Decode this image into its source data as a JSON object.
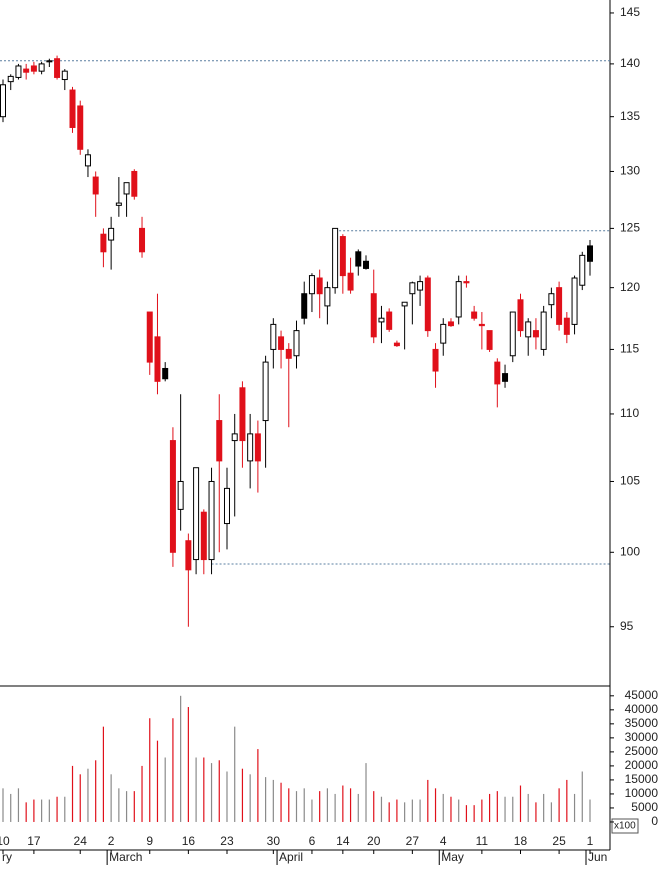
{
  "chart_data": {
    "type": "candlestick",
    "categories": [
      "10",
      null,
      null,
      null,
      "17",
      null,
      null,
      null,
      null,
      null,
      "24",
      null,
      null,
      null,
      "2",
      null,
      null,
      null,
      null,
      "9",
      null,
      null,
      null,
      null,
      "16",
      null,
      null,
      null,
      null,
      "23",
      null,
      null,
      null,
      null,
      null,
      "30",
      null,
      null,
      null,
      null,
      "6",
      null,
      null,
      null,
      "14",
      null,
      null,
      null,
      "20",
      null,
      null,
      null,
      null,
      "27",
      null,
      null,
      null,
      "4",
      null,
      null,
      null,
      null,
      "11",
      null,
      null,
      null,
      null,
      "18",
      null,
      null,
      null,
      null,
      "25",
      null,
      null,
      null,
      "1"
    ],
    "month_labels": [
      {
        "label": "ry",
        "at": 0
      },
      {
        "label": "March",
        "at": 14
      },
      {
        "label": "April",
        "at": 36
      },
      {
        "label": "May",
        "at": 57
      },
      {
        "label": "Jun",
        "at": 76
      }
    ],
    "open": [
      135,
      138.3,
      138.7,
      139.5,
      139.8,
      139.3,
      140.2,
      140.5,
      138.5,
      137.5,
      136,
      130.5,
      129.5,
      124.5,
      124,
      127,
      128,
      130,
      125,
      118,
      116,
      113.5,
      108,
      103,
      100.8,
      99.5,
      102.8,
      99.5,
      109.5,
      102,
      108,
      112,
      106.5,
      108.5,
      109.5,
      115,
      116,
      115,
      114.5,
      117.5,
      119.5,
      120.8,
      118.5,
      120,
      124.3,
      121.2,
      123,
      122.2,
      119.5,
      117.5,
      118,
      115.5,
      118.5,
      119.5,
      119.8,
      120.8,
      115,
      115.5,
      117.2,
      117.6,
      120.5,
      118,
      117,
      116.5,
      114,
      112.5,
      114.5,
      119,
      116,
      116.5,
      115,
      118.6,
      120,
      117.5,
      117,
      120.2,
      122.2
    ],
    "high": [
      138.5,
      139,
      140,
      140,
      140.2,
      140.2,
      140.5,
      140.8,
      139.5,
      137.8,
      136.5,
      132,
      130,
      125,
      126,
      129.5,
      129,
      130.2,
      126,
      118,
      119.5,
      114,
      109,
      111.5,
      101.3,
      106,
      103,
      106,
      111.5,
      106,
      110,
      112.5,
      110,
      109.5,
      114.5,
      117.5,
      116.5,
      115.5,
      117.3,
      120.5,
      121.2,
      121.5,
      120.5,
      125,
      124.5,
      122.5,
      123.2,
      122.7,
      121.5,
      118.5,
      118.3,
      115.7,
      118.8,
      120.5,
      121,
      121,
      115.5,
      117.5,
      117.5,
      121,
      121,
      118.5,
      118,
      116.5,
      114.3,
      113.8,
      118,
      119.5,
      117.5,
      117.5,
      118.5,
      120,
      120.5,
      118,
      121,
      123,
      124
    ],
    "low": [
      134.5,
      137.5,
      138.5,
      138.5,
      139,
      139,
      139.7,
      138.5,
      137.5,
      133.5,
      131.5,
      129.5,
      126,
      121.7,
      121.5,
      126,
      126,
      127.5,
      122.5,
      113,
      111.5,
      112.5,
      99,
      101.5,
      95,
      98.5,
      98.5,
      98.5,
      100,
      100.2,
      102.5,
      106,
      104.5,
      104.2,
      106,
      113.5,
      113.5,
      109,
      113.5,
      117,
      118,
      117.5,
      117,
      119.5,
      119.5,
      119.5,
      121,
      121.5,
      115.5,
      115.5,
      116.4,
      115.2,
      115,
      117,
      118.5,
      116,
      112,
      114.5,
      116.8,
      117,
      120,
      117.3,
      115,
      114.8,
      110.5,
      112,
      114,
      116,
      114.5,
      115,
      114.5,
      117.5,
      116.5,
      115.5,
      116.2,
      119.8,
      121
    ],
    "close": [
      138,
      138.8,
      139.8,
      139.2,
      139.3,
      140,
      140.3,
      138.7,
      139.3,
      134,
      132,
      131.5,
      128,
      123,
      125,
      127.2,
      129,
      127.8,
      123,
      114,
      112.5,
      112.7,
      100,
      105,
      98.8,
      106,
      99.5,
      105,
      106.5,
      104.5,
      108.5,
      108,
      108.5,
      106.5,
      114,
      117,
      115,
      114.3,
      116.5,
      119.5,
      121,
      119.5,
      120,
      125,
      121,
      119.8,
      121.8,
      121.6,
      116,
      117.2,
      116.6,
      115.3,
      118.8,
      120.4,
      120.5,
      116.5,
      113.3,
      117,
      116.9,
      120.5,
      120.4,
      117.5,
      116.9,
      115,
      112.3,
      113.1,
      118,
      116.5,
      117.2,
      116,
      118,
      119.5,
      117,
      116.2,
      120.8,
      122.7,
      123.5
    ],
    "fills": [
      "#ffffff",
      "#ffffff",
      "#ffffff",
      "#e0101a",
      "#e0101a",
      "#ffffff",
      "#ffffff",
      "#e0101a",
      "#ffffff",
      "#e0101a",
      "#e0101a",
      "#ffffff",
      "#e0101a",
      "#e0101a",
      "#ffffff",
      "#ffffff",
      "#ffffff",
      "#e0101a",
      "#e0101a",
      "#e0101a",
      "#e0101a",
      "#000000",
      "#e0101a",
      "#ffffff",
      "#e0101a",
      "#ffffff",
      "#e0101a",
      "#ffffff",
      "#e0101a",
      "#ffffff",
      "#ffffff",
      "#e0101a",
      "#ffffff",
      "#e0101a",
      "#ffffff",
      "#ffffff",
      "#e0101a",
      "#e0101a",
      "#ffffff",
      "#000000",
      "#ffffff",
      "#e0101a",
      "#ffffff",
      "#ffffff",
      "#e0101a",
      "#e0101a",
      "#000000",
      "#000000",
      "#e0101a",
      "#ffffff",
      "#e0101a",
      "#e0101a",
      "#ffffff",
      "#ffffff",
      "#ffffff",
      "#e0101a",
      "#e0101a",
      "#ffffff",
      "#e0101a",
      "#ffffff",
      "#e0101a",
      "#e0101a",
      "#e0101a",
      "#e0101a",
      "#e0101a",
      "#000000",
      "#ffffff",
      "#e0101a",
      "#ffffff",
      "#e0101a",
      "#ffffff",
      "#ffffff",
      "#e0101a",
      "#e0101a",
      "#ffffff",
      "#ffffff",
      "#000000"
    ],
    "volume": [
      12000,
      10000,
      12000,
      7000,
      8000,
      8000,
      8000,
      9000,
      9000,
      20000,
      17000,
      19000,
      22000,
      34000,
      17000,
      12000,
      11000,
      11000,
      20000,
      37000,
      29000,
      23000,
      37000,
      45000,
      41000,
      23000,
      23000,
      21000,
      22000,
      18000,
      34000,
      19000,
      17000,
      26000,
      16000,
      15000,
      14000,
      12000,
      11000,
      12000,
      8000,
      11000,
      12000,
      10000,
      13000,
      12000,
      10000,
      21000,
      11000,
      9000,
      7000,
      8000,
      7000,
      8000,
      8000,
      15000,
      12000,
      10000,
      9000,
      8000,
      6000,
      6000,
      8000,
      10000,
      11000,
      9000,
      9000,
      13000,
      10000,
      7000,
      10000,
      7000,
      12000,
      15000,
      10000,
      18000,
      8000
    ],
    "ylim": [
      91.2,
      146.3
    ],
    "yticks": [
      95,
      100,
      105,
      110,
      115,
      120,
      125,
      130,
      135,
      140,
      145
    ],
    "log_scale": true,
    "reference_lines": [
      {
        "value": 140.3,
        "from": 0
      },
      {
        "value": 124.8,
        "from": 43
      },
      {
        "value": 99.2,
        "from": 27
      }
    ],
    "volume_ylim": [
      -10000,
      48500
    ],
    "volume_yticks": [
      0,
      5000,
      10000,
      15000,
      20000,
      25000,
      30000,
      35000,
      40000,
      45000
    ],
    "volume_unit": "x100"
  }
}
